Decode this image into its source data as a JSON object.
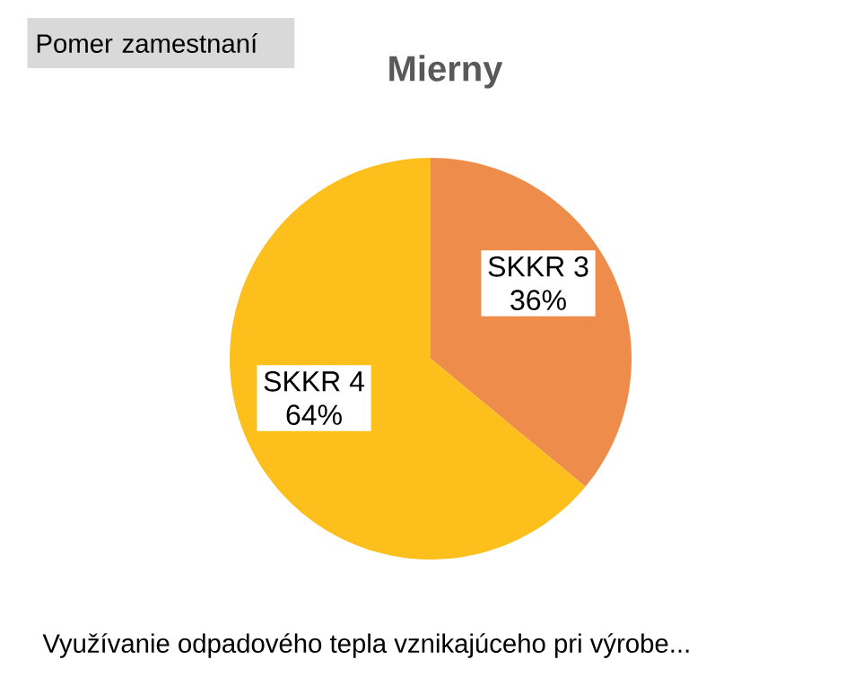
{
  "chart_data": {
    "type": "pie",
    "title": "Mierny",
    "categories": [
      "SKKR 3",
      "SKKR 4"
    ],
    "values": [
      36,
      64
    ],
    "colors": [
      "#ee8c4b",
      "#fcbf1c"
    ],
    "value_labels": [
      "36%",
      "64%"
    ],
    "annotations": [
      "Pomer zamestnaní",
      "Využívanie odpadového tepla vznikajúceho pri výrobe..."
    ]
  }
}
